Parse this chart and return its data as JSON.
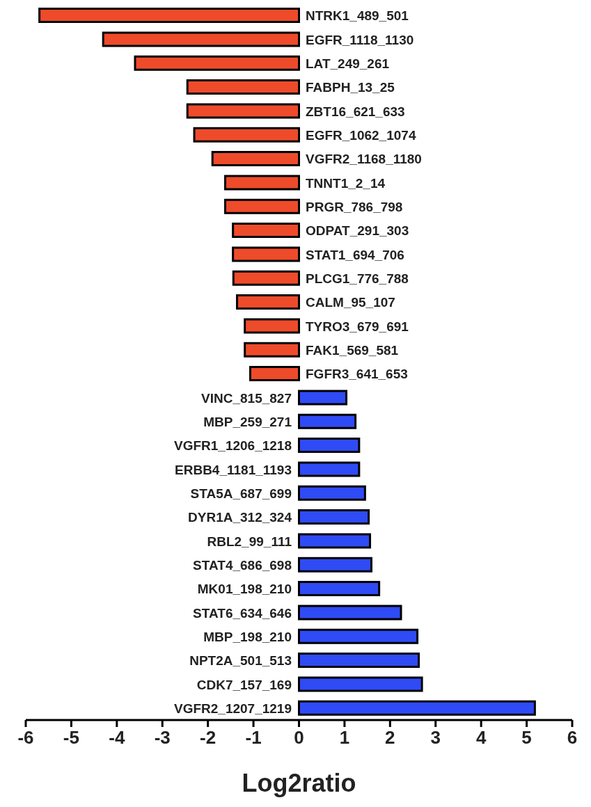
{
  "chart_data": {
    "type": "bar",
    "orientation": "horizontal",
    "xlabel": "Log2ratio",
    "categories": [
      "NTRK1_489_501",
      "EGFR_1118_1130",
      "LAT_249_261",
      "FABPH_13_25",
      "ZBT16_621_633",
      "EGFR_1062_1074",
      "VGFR2_1168_1180",
      "TNNT1_2_14",
      "PRGR_786_798",
      "ODPAT_291_303",
      "STAT1_694_706",
      "PLCG1_776_788",
      "CALM_95_107",
      "TYRO3_679_691",
      "FAK1_569_581",
      "FGFR3_641_653",
      "VINC_815_827",
      "MBP_259_271",
      "VGFR1_1206_1218",
      "ERBB4_1181_1193",
      "STA5A_687_699",
      "DYR1A_312_324",
      "RBL2_99_111",
      "STAT4_686_698",
      "MK01_198_210",
      "STAT6_634_646",
      "MBP_198_210",
      "NPT2A_501_513",
      "CDK7_157_169",
      "VGFR2_1207_1219"
    ],
    "values": [
      -5.7,
      -4.3,
      -3.6,
      -2.45,
      -2.45,
      -2.3,
      -1.9,
      -1.62,
      -1.62,
      -1.45,
      -1.45,
      -1.44,
      -1.36,
      -1.19,
      -1.19,
      -1.07,
      1.04,
      1.24,
      1.32,
      1.32,
      1.45,
      1.53,
      1.56,
      1.59,
      1.76,
      2.24,
      2.6,
      2.63,
      2.7,
      5.18
    ],
    "colors": [
      "#ee4b2b",
      "#ee4b2b",
      "#ee4b2b",
      "#ee4b2b",
      "#ee4b2b",
      "#ee4b2b",
      "#ee4b2b",
      "#ee4b2b",
      "#ee4b2b",
      "#ee4b2b",
      "#ee4b2b",
      "#ee4b2b",
      "#ee4b2b",
      "#ee4b2b",
      "#ee4b2b",
      "#ee4b2b",
      "#2f4bf5",
      "#2f4bf5",
      "#2f4bf5",
      "#2f4bf5",
      "#2f4bf5",
      "#2f4bf5",
      "#2f4bf5",
      "#2f4bf5",
      "#2f4bf5",
      "#2f4bf5",
      "#2f4bf5",
      "#2f4bf5",
      "#2f4bf5",
      "#2f4bf5"
    ],
    "xlim": [
      -6,
      6
    ],
    "xticks": [
      -6,
      -5,
      -4,
      -3,
      -2,
      -1,
      0,
      1,
      2,
      3,
      4,
      5,
      6
    ],
    "grid": false,
    "legend": false
  }
}
